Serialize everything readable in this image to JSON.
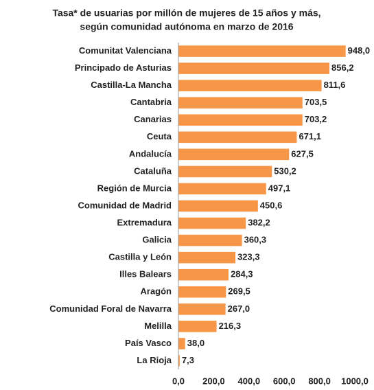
{
  "chart_data": {
    "type": "bar",
    "orientation": "horizontal",
    "title": [
      "Tasa* de usuarias por millón de mujeres de 15 años y más,",
      "según comunidad autónoma en marzo de 2016"
    ],
    "categories": [
      "Comunitat Valenciana",
      "Principado de Asturias",
      "Castilla-La Mancha",
      "Cantabria",
      "Canarias",
      "Ceuta",
      "Andalucía",
      "Cataluña",
      "Región de Murcia",
      "Comunidad de Madrid",
      "Extremadura",
      "Galicia",
      "Castilla y León",
      "Illes Balears",
      "Aragón",
      "Comunidad Foral de Navarra",
      "Melilla",
      "País Vasco",
      "La Rioja"
    ],
    "values": [
      948.0,
      856.2,
      811.6,
      703.5,
      703.2,
      671.1,
      627.5,
      530.2,
      497.1,
      450.6,
      382.2,
      360.3,
      323.3,
      284.3,
      269.5,
      267.0,
      216.3,
      38.0,
      7.3
    ],
    "value_labels": [
      "948,0",
      "856,2",
      "811,6",
      "703,5",
      "703,2",
      "671,1",
      "627,5",
      "530,2",
      "497,1",
      "450,6",
      "382,2",
      "360,3",
      "323,3",
      "284,3",
      "269,5",
      "267,0",
      "216,3",
      "38,0",
      "7,3"
    ],
    "color": "#f79646",
    "xlim": [
      0,
      1000
    ],
    "xticks": [
      {
        "value": 0,
        "label": "0,0"
      },
      {
        "value": 200,
        "label": "200,0"
      },
      {
        "value": 400,
        "label": "400,0"
      },
      {
        "value": 600,
        "label": "600,0"
      },
      {
        "value": 800,
        "label": "800,0"
      },
      {
        "value": 1000,
        "label": "1000,0"
      }
    ],
    "grid": false
  }
}
